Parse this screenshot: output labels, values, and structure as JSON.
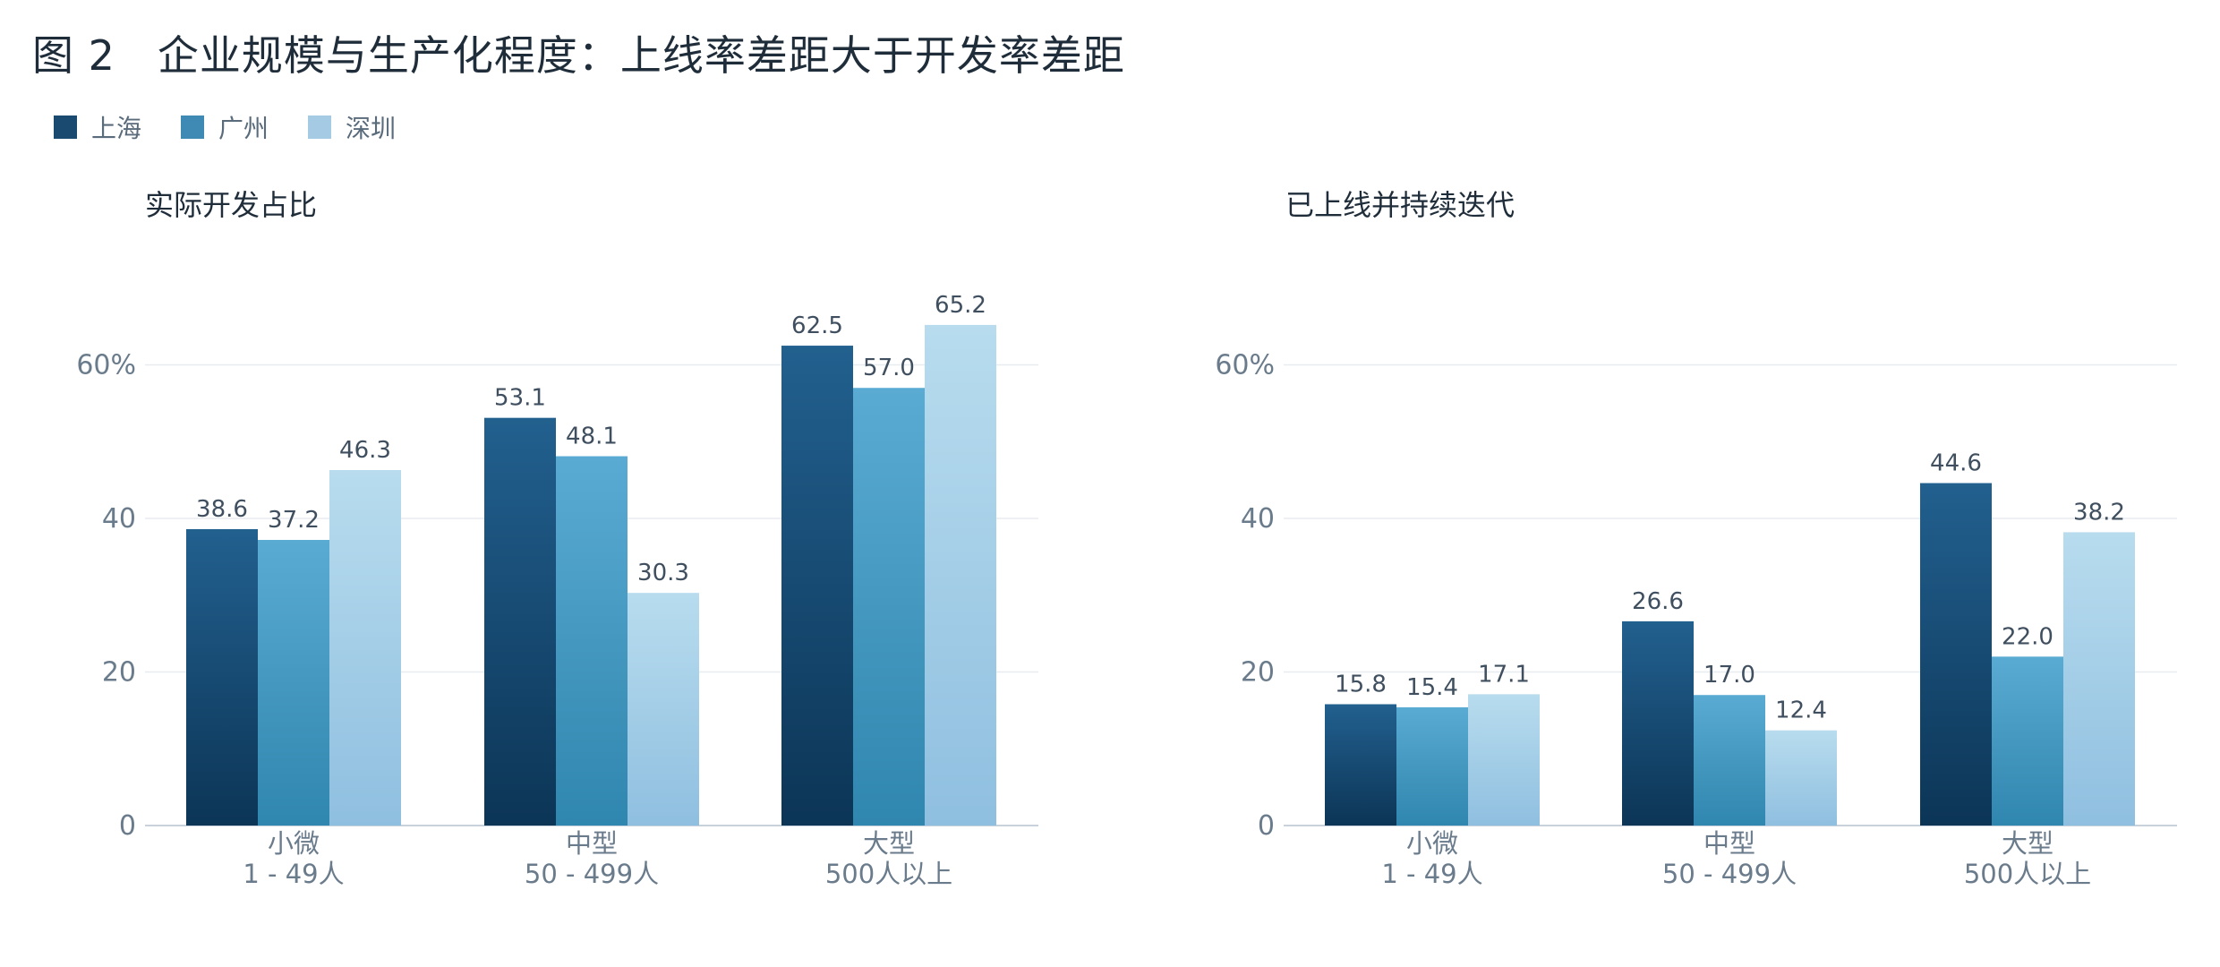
{
  "title": "图 2　企业规模与生产化程度：上线率差距大于开发率差距",
  "legend": [
    {
      "name": "上海",
      "color": "#1b4a70"
    },
    {
      "name": "广州",
      "color": "#3f8ab5"
    },
    {
      "name": "深圳",
      "color": "#a4cbe3"
    }
  ],
  "chart_data": [
    {
      "type": "bar",
      "title": "实际开发占比",
      "categories": [
        [
          "小微",
          "1 - 49人"
        ],
        [
          "中型",
          "50 - 499人"
        ],
        [
          "大型",
          "500人以上"
        ]
      ],
      "series": [
        {
          "name": "上海",
          "values": [
            38.6,
            53.1,
            62.5
          ]
        },
        {
          "name": "广州",
          "values": [
            37.2,
            48.1,
            57.0
          ]
        },
        {
          "name": "深圳",
          "values": [
            46.3,
            30.3,
            65.2
          ]
        }
      ],
      "ylim": [
        0,
        70
      ],
      "yticks": [
        0,
        20,
        40,
        60
      ],
      "ytick_labels": [
        "0",
        "20",
        "40",
        "60%"
      ],
      "grid": true,
      "legend_position": "top-left"
    },
    {
      "type": "bar",
      "title": "已上线并持续迭代",
      "categories": [
        [
          "小微",
          "1 - 49人"
        ],
        [
          "中型",
          "50 - 499人"
        ],
        [
          "大型",
          "500人以上"
        ]
      ],
      "series": [
        {
          "name": "上海",
          "values": [
            15.8,
            26.6,
            44.6
          ]
        },
        {
          "name": "广州",
          "values": [
            15.4,
            17.0,
            22.0
          ]
        },
        {
          "name": "深圳",
          "values": [
            17.1,
            12.4,
            38.2
          ]
        }
      ],
      "ylim": [
        0,
        70
      ],
      "yticks": [
        0,
        20,
        40,
        60
      ],
      "ytick_labels": [
        "0",
        "20",
        "40",
        "60%"
      ],
      "grid": true,
      "legend_position": "top-left"
    }
  ]
}
